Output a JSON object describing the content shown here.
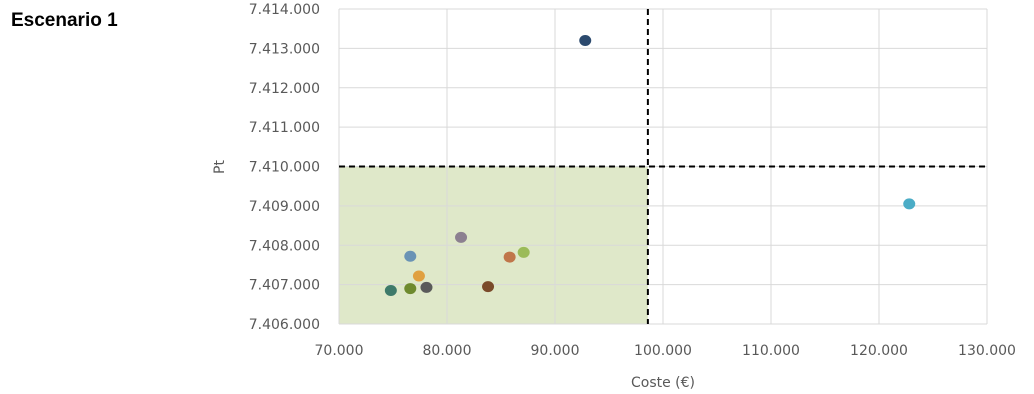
{
  "heading": "Escenario 1",
  "chart_data": {
    "type": "scatter",
    "xlabel": "Coste (€)",
    "ylabel": "Pt",
    "xlim": [
      70000,
      130000
    ],
    "ylim": [
      7406000,
      7414000
    ],
    "x_ticks": [
      70000,
      80000,
      90000,
      100000,
      110000,
      120000,
      130000
    ],
    "y_ticks": [
      7406000,
      7407000,
      7408000,
      7409000,
      7410000,
      7411000,
      7412000,
      7413000,
      7414000
    ],
    "x_tick_labels": [
      "70.000",
      "80.000",
      "90.000",
      "100.000",
      "110.000",
      "120.000",
      "130.000"
    ],
    "y_tick_labels": [
      "7.406.000",
      "7.407.000",
      "7.408.000",
      "7.409.000",
      "7.410.000",
      "7.411.000",
      "7.412.000",
      "7.413.000",
      "7.414.000"
    ],
    "grid": true,
    "threshold_x": 98600,
    "threshold_y": 7410000,
    "feasible_region": {
      "x": [
        70000,
        98600
      ],
      "y": [
        7406000,
        7410000
      ],
      "color": "#dfe8c9"
    },
    "points": [
      {
        "x": 92800,
        "y": 7413200,
        "color": "#2c4a6e"
      },
      {
        "x": 122800,
        "y": 7409050,
        "color": "#4bacc6"
      },
      {
        "x": 81300,
        "y": 7408200,
        "color": "#8c8090"
      },
      {
        "x": 87100,
        "y": 7407820,
        "color": "#9bbb59"
      },
      {
        "x": 85800,
        "y": 7407700,
        "color": "#c0764a"
      },
      {
        "x": 76600,
        "y": 7407720,
        "color": "#6a93b5"
      },
      {
        "x": 77400,
        "y": 7407220,
        "color": "#e0a040"
      },
      {
        "x": 83800,
        "y": 7406950,
        "color": "#7a4a2a"
      },
      {
        "x": 78100,
        "y": 7406930,
        "color": "#5a5a5a"
      },
      {
        "x": 76600,
        "y": 7406900,
        "color": "#6e8a2e"
      },
      {
        "x": 74800,
        "y": 7406850,
        "color": "#3e7a6a"
      }
    ]
  }
}
